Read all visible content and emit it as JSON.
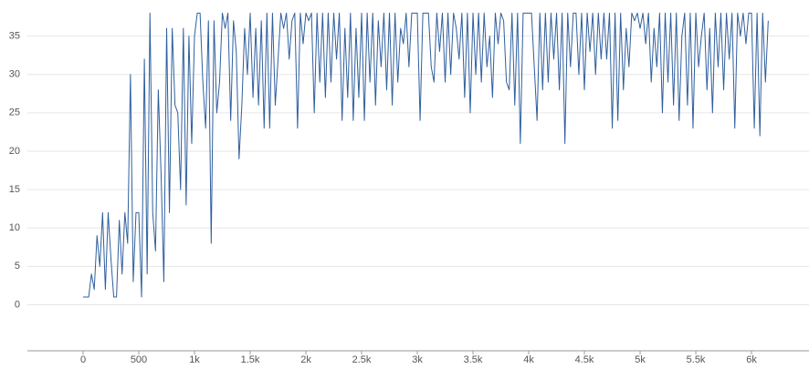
{
  "chart_data": {
    "type": "line",
    "x": [
      0,
      25,
      50,
      75,
      100,
      125,
      150,
      175,
      200,
      225,
      250,
      275,
      300,
      325,
      350,
      375,
      400,
      425,
      450,
      475,
      500,
      525,
      550,
      575,
      600,
      625,
      650,
      675,
      700,
      725,
      750,
      775,
      800,
      825,
      850,
      875,
      900,
      925,
      950,
      975,
      1000,
      1025,
      1050,
      1075,
      1100,
      1125,
      1150,
      1175,
      1200,
      1225,
      1250,
      1275,
      1300,
      1325,
      1350,
      1375,
      1400,
      1425,
      1450,
      1475,
      1500,
      1525,
      1550,
      1575,
      1600,
      1625,
      1650,
      1675,
      1700,
      1725,
      1750,
      1775,
      1800,
      1825,
      1850,
      1875,
      1900,
      1925,
      1950,
      1975,
      2000,
      2025,
      2050,
      2075,
      2100,
      2125,
      2150,
      2175,
      2200,
      2225,
      2250,
      2275,
      2300,
      2325,
      2350,
      2375,
      2400,
      2425,
      2450,
      2475,
      2500,
      2525,
      2550,
      2575,
      2600,
      2625,
      2650,
      2675,
      2700,
      2725,
      2750,
      2775,
      2800,
      2825,
      2850,
      2875,
      2900,
      2925,
      2950,
      2975,
      3000,
      3025,
      3050,
      3075,
      3100,
      3125,
      3150,
      3175,
      3200,
      3225,
      3250,
      3275,
      3300,
      3325,
      3350,
      3375,
      3400,
      3425,
      3450,
      3475,
      3500,
      3525,
      3550,
      3575,
      3600,
      3625,
      3650,
      3675,
      3700,
      3725,
      3750,
      3775,
      3800,
      3825,
      3850,
      3875,
      3900,
      3925,
      3950,
      3975,
      4000,
      4025,
      4050,
      4075,
      4100,
      4125,
      4150,
      4175,
      4200,
      4225,
      4250,
      4275,
      4300,
      4325,
      4350,
      4375,
      4400,
      4425,
      4450,
      4475,
      4500,
      4525,
      4550,
      4575,
      4600,
      4625,
      4650,
      4675,
      4700,
      4725,
      4750,
      4775,
      4800,
      4825,
      4850,
      4875,
      4900,
      4925,
      4950,
      4975,
      5000,
      5025,
      5050,
      5075,
      5100,
      5125,
      5150,
      5175,
      5200,
      5225,
      5250,
      5275,
      5300,
      5325,
      5350,
      5375,
      5400,
      5425,
      5450,
      5475,
      5500,
      5525,
      5550,
      5575,
      5600,
      5625,
      5650,
      5675,
      5700,
      5725,
      5750,
      5775,
      5800,
      5825,
      5850,
      5875,
      5900,
      5925,
      5950,
      5975,
      6000,
      6025,
      6050,
      6075,
      6100,
      6125,
      6150
    ],
    "series": [
      {
        "color": "#2f5f9e",
        "values": [
          1,
          1,
          1,
          4,
          2,
          9,
          5,
          12,
          2,
          12,
          6,
          1,
          1,
          11,
          4,
          12,
          8,
          30,
          3,
          12,
          12,
          1,
          32,
          4,
          38,
          12,
          7,
          28,
          17,
          3,
          36,
          12,
          36,
          26,
          25,
          15,
          36,
          13,
          35,
          21,
          35,
          38,
          38,
          29,
          23,
          37,
          8,
          37,
          25,
          29,
          38,
          36,
          38,
          24,
          37,
          33,
          19,
          26,
          36,
          30,
          38,
          27,
          36,
          26,
          37,
          23,
          38,
          23,
          38,
          26,
          32,
          38,
          36,
          38,
          32,
          37,
          38,
          23,
          38,
          34,
          38,
          37,
          38,
          25,
          38,
          29,
          38,
          27,
          38,
          29,
          38,
          32,
          38,
          24,
          36,
          27,
          38,
          24,
          36,
          27,
          38,
          24,
          38,
          29,
          38,
          26,
          37,
          31,
          38,
          28,
          38,
          26,
          38,
          29,
          36,
          34,
          38,
          31,
          38,
          38,
          38,
          24,
          38,
          38,
          38,
          31,
          29,
          38,
          33,
          38,
          29,
          38,
          30,
          38,
          36,
          32,
          38,
          27,
          38,
          25,
          38,
          30,
          38,
          29,
          38,
          31,
          35,
          27,
          38,
          34,
          38,
          37,
          29,
          28,
          38,
          26,
          38,
          21,
          38,
          38,
          38,
          38,
          31,
          24,
          38,
          28,
          38,
          29,
          38,
          32,
          38,
          28,
          38,
          21,
          38,
          31,
          38,
          38,
          30,
          38,
          28,
          38,
          33,
          38,
          30,
          38,
          32,
          38,
          32,
          38,
          23,
          38,
          24,
          38,
          28,
          36,
          31,
          38,
          37,
          38,
          36,
          38,
          34,
          38,
          29,
          36,
          31,
          38,
          25,
          38,
          29,
          38,
          26,
          38,
          24,
          35,
          38,
          26,
          38,
          23,
          38,
          31,
          35,
          38,
          28,
          36,
          25,
          38,
          31,
          38,
          28,
          38,
          32,
          38,
          23,
          38,
          35,
          38,
          34,
          38,
          38,
          23,
          38,
          22,
          38,
          29,
          37
        ]
      }
    ],
    "xlim": [
      -500,
      6516
    ],
    "ylim": [
      -6,
      39.7
    ],
    "xticks": [
      0,
      500,
      {
        "value": 1000,
        "label": "1k"
      },
      {
        "value": 1500,
        "label": "1.5k"
      },
      {
        "value": 2000,
        "label": "2k"
      },
      {
        "value": 2500,
        "label": "2.5k"
      },
      {
        "value": 3000,
        "label": "3k"
      },
      {
        "value": 3500,
        "label": "3.5k"
      },
      {
        "value": 4000,
        "label": "4k"
      },
      {
        "value": 4500,
        "label": "4.5k"
      },
      {
        "value": 5000,
        "label": "5k"
      },
      {
        "value": 5500,
        "label": "5.5k"
      },
      {
        "value": 6000,
        "label": "6k"
      }
    ],
    "yticks": [
      0,
      5,
      10,
      15,
      20,
      25,
      30,
      35
    ],
    "grid": true
  }
}
